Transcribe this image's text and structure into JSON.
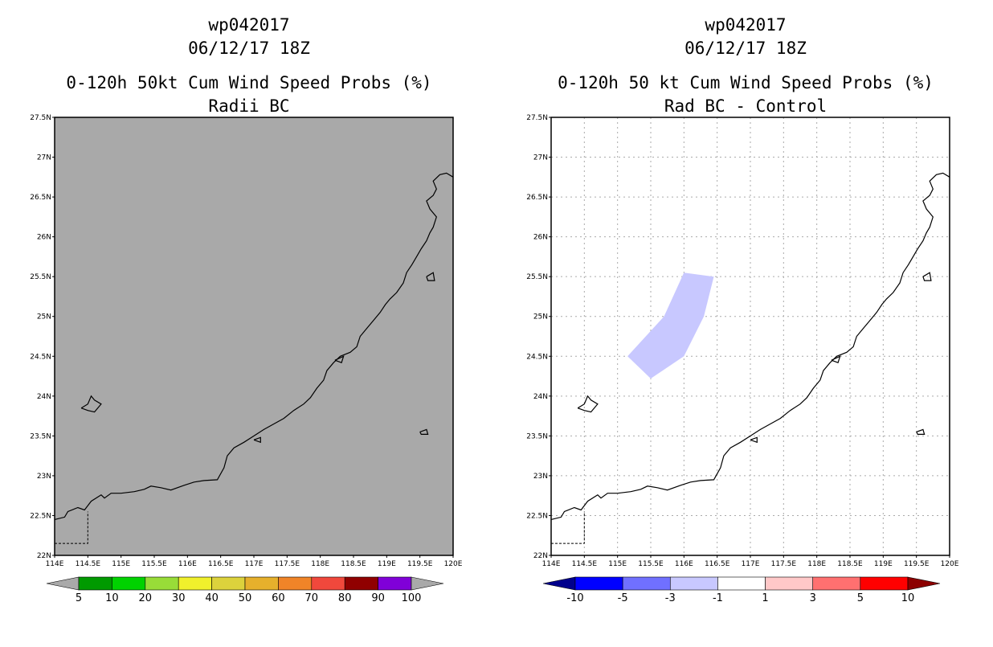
{
  "panels": [
    {
      "title_line1": "wp042017",
      "title_line2": "06/12/17 18Z",
      "title_line3": "0-120h 50kt Cum Wind Speed Probs (%)",
      "title_line4": "Radii BC",
      "background": "#a9a9a9",
      "grid": false,
      "colorbar": {
        "labels": [
          "5",
          "10",
          "20",
          "30",
          "40",
          "50",
          "60",
          "70",
          "80",
          "90",
          "100"
        ],
        "colors": [
          "#a9a9a9",
          "#009a00",
          "#00d200",
          "#98dc38",
          "#f0f02c",
          "#dcd23c",
          "#e6b02c",
          "#f08428",
          "#f0483c",
          "#900000",
          "#8000d8",
          "#a9a9a9"
        ]
      },
      "prob_area": null
    },
    {
      "title_line1": "wp042017",
      "title_line2": "06/12/17 18Z",
      "title_line3": "0-120h 50 kt Cum Wind Speed Probs (%)",
      "title_line4": "Rad BC - Control",
      "background": "#ffffff",
      "grid": true,
      "colorbar": {
        "labels": [
          "-10",
          "-5",
          "-3",
          "-1",
          "1",
          "3",
          "5",
          "10"
        ],
        "colors": [
          "#00008c",
          "#0000ff",
          "#7070ff",
          "#c8c8ff",
          "#ffffff",
          "#ffc8c8",
          "#ff7070",
          "#ff0000",
          "#8c0000"
        ]
      },
      "prob_area": {
        "value_range": "-3 to -1",
        "color": "#c8c8ff",
        "points": [
          [
            116.0,
            25.55
          ],
          [
            116.45,
            25.5
          ],
          [
            116.3,
            25.0
          ],
          [
            116.0,
            24.5
          ],
          [
            115.5,
            24.22
          ],
          [
            115.15,
            24.5
          ],
          [
            115.7,
            25.0
          ]
        ]
      }
    }
  ],
  "map": {
    "lon_range": [
      114,
      120
    ],
    "lat_range": [
      22,
      27.5
    ],
    "lon_labels": [
      "114E",
      "114.5E",
      "115E",
      "115.5E",
      "116E",
      "116.5E",
      "117E",
      "117.5E",
      "118E",
      "118.5E",
      "119E",
      "119.5E",
      "120E"
    ],
    "lat_labels": [
      "22N",
      "22.5N",
      "23N",
      "23.5N",
      "24N",
      "24.5N",
      "25N",
      "25.5N",
      "26N",
      "26.5N",
      "27N",
      "27.5N"
    ]
  },
  "coastline": [
    [
      114.0,
      22.45
    ],
    [
      114.15,
      22.48
    ],
    [
      114.2,
      22.55
    ],
    [
      114.35,
      22.6
    ],
    [
      114.45,
      22.57
    ],
    [
      114.55,
      22.68
    ],
    [
      114.7,
      22.76
    ],
    [
      114.75,
      22.72
    ],
    [
      114.85,
      22.78
    ],
    [
      115.0,
      22.78
    ],
    [
      115.2,
      22.8
    ],
    [
      115.35,
      22.83
    ],
    [
      115.45,
      22.87
    ],
    [
      115.6,
      22.85
    ],
    [
      115.75,
      22.82
    ],
    [
      115.95,
      22.88
    ],
    [
      116.1,
      22.92
    ],
    [
      116.25,
      22.94
    ],
    [
      116.45,
      22.95
    ],
    [
      116.55,
      23.1
    ],
    [
      116.6,
      23.25
    ],
    [
      116.7,
      23.35
    ],
    [
      116.85,
      23.42
    ],
    [
      117.0,
      23.5
    ],
    [
      117.15,
      23.58
    ],
    [
      117.3,
      23.65
    ],
    [
      117.45,
      23.72
    ],
    [
      117.6,
      23.82
    ],
    [
      117.75,
      23.9
    ],
    [
      117.85,
      23.98
    ],
    [
      117.95,
      24.1
    ],
    [
      118.05,
      24.2
    ],
    [
      118.1,
      24.32
    ],
    [
      118.2,
      24.42
    ],
    [
      118.3,
      24.5
    ],
    [
      118.45,
      24.55
    ],
    [
      118.55,
      24.62
    ],
    [
      118.6,
      24.75
    ],
    [
      118.7,
      24.85
    ],
    [
      118.8,
      24.95
    ],
    [
      118.9,
      25.05
    ],
    [
      118.98,
      25.15
    ],
    [
      119.05,
      25.22
    ],
    [
      119.15,
      25.3
    ],
    [
      119.25,
      25.42
    ],
    [
      119.3,
      25.55
    ],
    [
      119.38,
      25.65
    ],
    [
      119.45,
      25.75
    ],
    [
      119.52,
      25.85
    ],
    [
      119.6,
      25.95
    ],
    [
      119.65,
      26.05
    ],
    [
      119.7,
      26.12
    ],
    [
      119.75,
      26.25
    ],
    [
      119.65,
      26.35
    ],
    [
      119.6,
      26.45
    ],
    [
      119.7,
      26.52
    ],
    [
      119.75,
      26.6
    ],
    [
      119.7,
      26.7
    ],
    [
      119.8,
      26.78
    ],
    [
      119.9,
      26.8
    ],
    [
      120.0,
      26.75
    ]
  ],
  "islands": [
    [
      [
        114.4,
        23.85
      ],
      [
        114.5,
        23.9
      ],
      [
        114.55,
        24.0
      ],
      [
        114.6,
        23.95
      ],
      [
        114.7,
        23.9
      ],
      [
        114.6,
        23.8
      ],
      [
        114.5,
        23.82
      ],
      [
        114.4,
        23.85
      ]
    ],
    [
      [
        117.0,
        23.45
      ],
      [
        117.1,
        23.48
      ],
      [
        117.1,
        23.42
      ],
      [
        117.0,
        23.45
      ]
    ],
    [
      [
        119.5,
        23.55
      ],
      [
        119.6,
        23.58
      ],
      [
        119.62,
        23.52
      ],
      [
        119.52,
        23.52
      ],
      [
        119.5,
        23.55
      ]
    ],
    [
      [
        118.22,
        24.45
      ],
      [
        118.35,
        24.5
      ],
      [
        118.32,
        24.42
      ],
      [
        118.22,
        24.45
      ]
    ],
    [
      [
        119.6,
        25.5
      ],
      [
        119.7,
        25.55
      ],
      [
        119.72,
        25.45
      ],
      [
        119.62,
        25.45
      ],
      [
        119.6,
        25.5
      ]
    ]
  ],
  "border": [
    [
      114.0,
      22.15
    ],
    [
      114.5,
      22.15
    ],
    [
      114.5,
      22.55
    ]
  ]
}
